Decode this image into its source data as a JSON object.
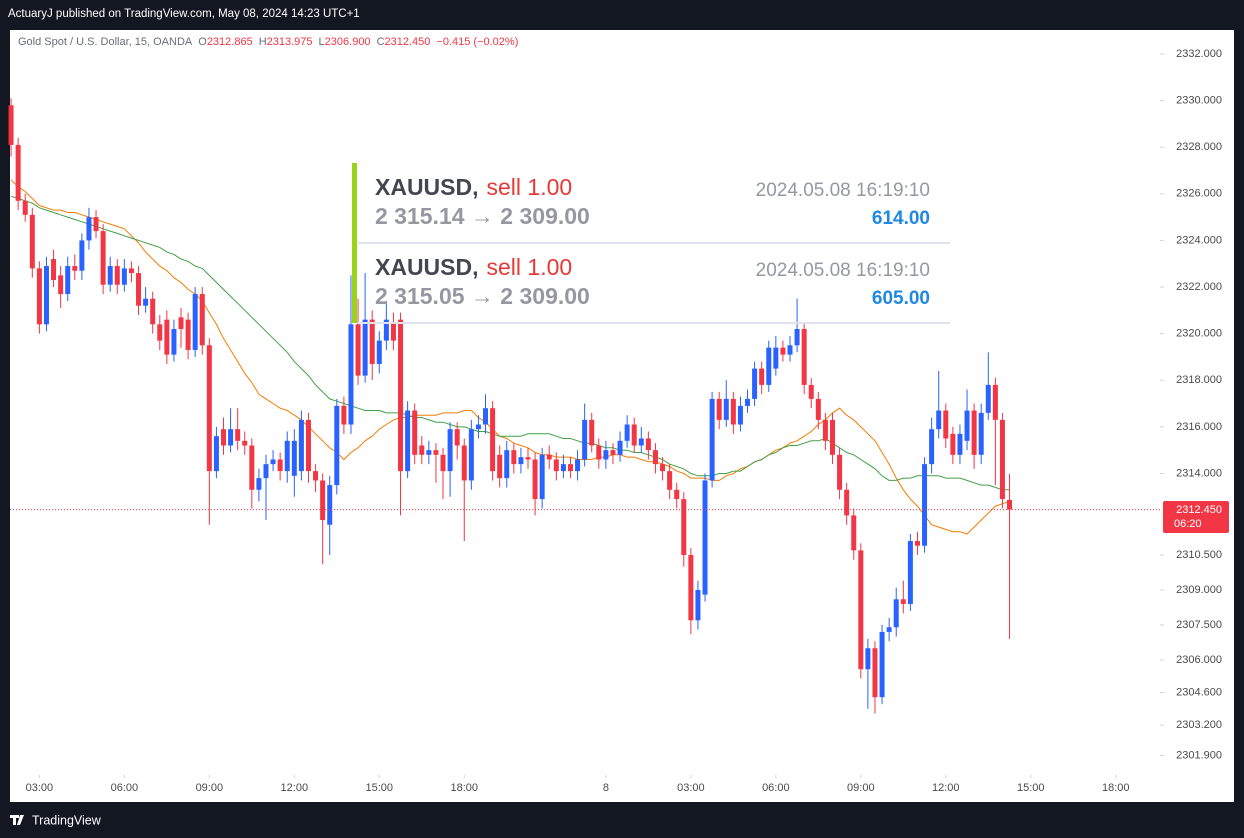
{
  "header": {
    "published": "ActuaryJ published on TradingView.com, May 08, 2024 14:23 UTC+1"
  },
  "legend": {
    "symbol": "Gold Spot / U.S. Dollar, 15, OANDA",
    "o_label": "O",
    "o": "2312.865",
    "h_label": "H",
    "h": "2313.975",
    "l_label": "L",
    "l": "2306.900",
    "c_label": "C",
    "c": "2312.450",
    "change": "−0.415 (−0.02%)"
  },
  "trades": [
    {
      "symbol": "XAUUSD,",
      "side": "sell 1.00",
      "time": "2024.05.08 16:19:10",
      "prices": "2 315.14 → 2 309.00",
      "profit": "614.00"
    },
    {
      "symbol": "XAUUSD,",
      "side": "sell 1.00",
      "time": "2024.05.08 16:19:10",
      "prices": "2 315.05 → 2 309.00",
      "profit": "605.00"
    }
  ],
  "price_label": {
    "price": "2312.450",
    "countdown": "06:20"
  },
  "footer": {
    "brand": "TradingView"
  },
  "chart_data": {
    "type": "candlestick",
    "up_color": "#2962ff",
    "down_color": "#f23645",
    "xlim": [
      -0.15,
      162.25
    ],
    "xticks": [
      {
        "value": 4,
        "label": "03:00"
      },
      {
        "value": 16,
        "label": "06:00"
      },
      {
        "value": 28,
        "label": "09:00"
      },
      {
        "value": 40,
        "label": "12:00"
      },
      {
        "value": 52,
        "label": "15:00"
      },
      {
        "value": 64,
        "label": "18:00"
      },
      {
        "value": 84,
        "label": "8"
      },
      {
        "value": 96,
        "label": "03:00"
      },
      {
        "value": 108,
        "label": "06:00"
      },
      {
        "value": 120,
        "label": "09:00"
      },
      {
        "value": 132,
        "label": "12:00"
      },
      {
        "value": 144,
        "label": "15:00"
      },
      {
        "value": 156,
        "label": "18:00"
      }
    ],
    "ylim": [
      2301.06,
      2333.03
    ],
    "yticks": [
      {
        "value": 2332,
        "label": "2332.000"
      },
      {
        "value": 2330,
        "label": "2330.000"
      },
      {
        "value": 2328,
        "label": "2328.000"
      },
      {
        "value": 2326,
        "label": "2326.000"
      },
      {
        "value": 2324,
        "label": "2324.000"
      },
      {
        "value": 2322,
        "label": "2322.000"
      },
      {
        "value": 2320,
        "label": "2320.000"
      },
      {
        "value": 2318,
        "label": "2318.000"
      },
      {
        "value": 2316,
        "label": "2316.000"
      },
      {
        "value": 2314,
        "label": "2314.000"
      },
      {
        "value": 2310.5,
        "label": "2310.500"
      },
      {
        "value": 2309,
        "label": "2309.000"
      },
      {
        "value": 2307.5,
        "label": "2307.500"
      },
      {
        "value": 2306,
        "label": "2306.000"
      },
      {
        "value": 2304.6,
        "label": "2304.600"
      },
      {
        "value": 2303.2,
        "label": "2303.200"
      },
      {
        "value": 2301.9,
        "label": "2301.900"
      }
    ],
    "open": [
      2329.8,
      2328.1,
      2325.7,
      2325.1,
      2322.8,
      2320.4,
      2323.2,
      2322.5,
      2321.7,
      2322.9,
      2322.7,
      2324.0,
      2325.0,
      2324.4,
      2322.1,
      2322.9,
      2322.1,
      2322.8,
      2322.6,
      2321.2,
      2321.5,
      2320.4,
      2320.6,
      2319.1,
      2320.7,
      2320.6,
      2319.3,
      2321.7,
      2319.5,
      2314.1,
      2315.9,
      2315.2,
      2315.9,
      2315.4,
      2315.2,
      2313.3,
      2313.8,
      2314.4,
      2314.6,
      2314.1,
      2313.9,
      2314.1,
      2316.3,
      2314.1,
      2313.7,
      2311.8,
      2313.5,
      2316.9,
      2316.1,
      2320.4,
      2318.2,
      2320.6,
      2318.7,
      2319.7,
      2320.5,
      2320.6,
      2314.1,
      2316.7,
      2315.2,
      2314.8,
      2315.0,
      2314.8,
      2314.1,
      2315.9,
      2315.2,
      2313.7,
      2315.9,
      2316.1,
      2316.8,
      2314.8,
      2313.8,
      2315.0,
      2314.4,
      2314.7,
      2314.6,
      2312.9,
      2314.8,
      2314.6,
      2314.1,
      2314.4,
      2314.1,
      2314.6,
      2316.3,
      2315.2,
      2314.6,
      2315.0,
      2314.8,
      2315.4,
      2316.1,
      2315.2,
      2315.5,
      2315.0,
      2314.4,
      2314.1,
      2313.3,
      2312.9,
      2310.5,
      2307.7,
      2308.8,
      2313.7,
      2317.2,
      2316.3,
      2317.2,
      2316.1,
      2316.9,
      2317.2,
      2318.5,
      2317.8,
      2318.5,
      2319.4,
      2319.1,
      2319.5,
      2320.2,
      2317.8,
      2317.2,
      2316.3,
      2316.3,
      2314.8,
      2313.3,
      2312.2,
      2310.7,
      2305.6,
      2306.5,
      2304.4,
      2307.2,
      2307.4,
      2308.6,
      2308.4,
      2311.1,
      2310.9,
      2314.4,
      2315.9,
      2316.7,
      2315.7,
      2314.8,
      2315.4,
      2316.7,
      2314.8,
      2316.6,
      2317.8,
      2316.3,
      2312.865
    ],
    "high": [
      2330.1,
      2328.4,
      2326.0,
      2325.4,
      2323.1,
      2323.3,
      2323.6,
      2322.9,
      2323.3,
      2323.4,
      2324.3,
      2325.4,
      2325.3,
      2324.7,
      2323.3,
      2323.2,
      2323.2,
      2323.1,
      2322.9,
      2322.0,
      2321.8,
      2320.8,
      2321.0,
      2320.6,
      2321.1,
      2320.9,
      2322.0,
      2322.0,
      2319.8,
      2316.0,
      2316.4,
      2316.8,
      2316.8,
      2315.8,
      2315.5,
      2314.2,
      2314.8,
      2315.0,
      2314.9,
      2315.8,
      2315.9,
      2316.7,
      2316.6,
      2314.4,
      2314.0,
      2313.9,
      2317.2,
      2317.3,
      2322.5,
      2321.5,
      2322.6,
      2321.0,
      2320.1,
      2321.4,
      2320.9,
      2320.9,
      2317.1,
      2317.0,
      2315.6,
      2315.4,
      2315.3,
      2315.1,
      2316.2,
      2316.2,
      2315.5,
      2316.3,
      2316.5,
      2317.4,
      2317.1,
      2315.2,
      2315.4,
      2315.3,
      2315.1,
      2315.1,
      2314.9,
      2315.1,
      2315.2,
      2314.9,
      2314.8,
      2314.7,
      2315.0,
      2317.0,
      2316.6,
      2315.5,
      2315.4,
      2315.3,
      2315.8,
      2316.5,
      2316.4,
      2316.0,
      2315.8,
      2315.3,
      2314.7,
      2314.4,
      2313.6,
      2313.2,
      2310.8,
      2309.4,
      2314.0,
      2317.5,
      2317.5,
      2318.0,
      2317.5,
      2317.3,
      2317.6,
      2318.8,
      2318.8,
      2319.7,
      2319.9,
      2319.7,
      2319.9,
      2321.5,
      2320.5,
      2318.1,
      2317.5,
      2316.6,
      2316.6,
      2315.1,
      2313.6,
      2312.5,
      2311.0,
      2306.9,
      2306.8,
      2307.5,
      2307.8,
      2309.1,
      2309.4,
      2311.4,
      2311.5,
      2314.7,
      2316.4,
      2318.4,
      2317.0,
      2316.0,
      2316.1,
      2317.6,
      2317.0,
      2317.0,
      2319.2,
      2318.1,
      2316.6,
      2313.975
    ],
    "low": [
      2327.6,
      2325.3,
      2324.8,
      2322.4,
      2320.0,
      2320.1,
      2322.0,
      2321.1,
      2321.4,
      2322.3,
      2322.3,
      2323.6,
      2324.1,
      2321.7,
      2321.8,
      2321.7,
      2321.8,
      2322.2,
      2320.8,
      2320.9,
      2320.0,
      2319.3,
      2318.7,
      2318.8,
      2319.4,
      2318.9,
      2319.0,
      2319.1,
      2311.8,
      2313.8,
      2314.8,
      2314.9,
      2315.0,
      2314.8,
      2312.5,
      2312.8,
      2312.0,
      2314.1,
      2313.7,
      2313.6,
      2313.0,
      2313.7,
      2313.6,
      2313.2,
      2310.1,
      2310.5,
      2313.1,
      2315.7,
      2315.7,
      2317.8,
      2317.9,
      2318.0,
      2318.3,
      2319.3,
      2319.3,
      2312.2,
      2313.8,
      2314.4,
      2314.4,
      2314.4,
      2313.6,
      2312.9,
      2313.0,
      2314.6,
      2311.1,
      2313.3,
      2315.5,
      2315.7,
      2313.7,
      2313.4,
      2313.4,
      2314.0,
      2314.0,
      2314.2,
      2312.2,
      2312.5,
      2314.2,
      2313.7,
      2313.8,
      2313.8,
      2313.7,
      2314.3,
      2314.9,
      2314.2,
      2314.2,
      2314.4,
      2314.5,
      2315.1,
      2314.9,
      2314.9,
      2314.6,
      2314.0,
      2313.7,
      2312.9,
      2312.5,
      2310.0,
      2307.1,
      2307.3,
      2308.5,
      2313.4,
      2315.9,
      2316.0,
      2315.7,
      2315.8,
      2316.6,
      2316.9,
      2317.4,
      2317.5,
      2318.2,
      2318.8,
      2318.8,
      2319.2,
      2317.4,
      2316.8,
      2315.9,
      2315.0,
      2314.4,
      2312.9,
      2311.8,
      2310.3,
      2305.2,
      2303.9,
      2303.7,
      2304.1,
      2306.8,
      2307.0,
      2308.0,
      2308.1,
      2310.5,
      2310.6,
      2314.0,
      2315.5,
      2315.1,
      2314.4,
      2314.4,
      2315.0,
      2314.2,
      2314.4,
      2316.3,
      2313.5,
      2312.5,
      2306.9
    ],
    "close": [
      2328.1,
      2325.7,
      2325.1,
      2322.8,
      2320.4,
      2322.9,
      2322.3,
      2321.7,
      2322.9,
      2322.7,
      2324.0,
      2325.0,
      2324.4,
      2322.1,
      2322.9,
      2322.1,
      2322.8,
      2322.6,
      2321.2,
      2321.5,
      2320.4,
      2319.7,
      2319.1,
      2320.2,
      2320.2,
      2319.3,
      2321.7,
      2319.5,
      2314.1,
      2315.6,
      2315.2,
      2315.9,
      2315.4,
      2315.2,
      2313.3,
      2313.8,
      2314.4,
      2314.6,
      2314.1,
      2315.4,
      2315.4,
      2316.3,
      2314.1,
      2313.7,
      2312.0,
      2313.5,
      2316.9,
      2316.1,
      2320.4,
      2318.2,
      2320.6,
      2318.7,
      2319.7,
      2320.6,
      2319.7,
      2314.1,
      2316.7,
      2314.8,
      2314.8,
      2315.0,
      2314.8,
      2314.1,
      2315.9,
      2315.2,
      2313.7,
      2315.9,
      2316.1,
      2316.8,
      2314.1,
      2313.8,
      2315.0,
      2314.4,
      2314.7,
      2314.6,
      2312.9,
      2314.8,
      2314.6,
      2314.1,
      2314.4,
      2314.1,
      2314.6,
      2316.3,
      2315.2,
      2314.6,
      2315.0,
      2314.8,
      2315.4,
      2316.1,
      2315.2,
      2315.5,
      2315.0,
      2314.4,
      2314.1,
      2313.3,
      2312.9,
      2310.5,
      2307.7,
      2309.0,
      2313.7,
      2317.2,
      2316.3,
      2317.2,
      2316.1,
      2316.9,
      2317.2,
      2318.5,
      2317.8,
      2319.4,
      2319.4,
      2319.1,
      2319.5,
      2320.2,
      2317.8,
      2317.2,
      2316.3,
      2315.4,
      2314.8,
      2313.3,
      2312.2,
      2310.7,
      2305.6,
      2306.5,
      2304.4,
      2307.2,
      2307.4,
      2308.6,
      2308.4,
      2311.1,
      2310.9,
      2314.4,
      2315.9,
      2316.7,
      2315.5,
      2314.8,
      2315.7,
      2316.7,
      2314.8,
      2316.6,
      2317.8,
      2316.3,
      2312.9,
      2312.45
    ],
    "lines": [
      {
        "color": "#f57c00",
        "values": [
          2326.6,
          2326.3,
          2326.1,
          2325.8,
          2325.5,
          2325.4,
          2325.3,
          2325.3,
          2325.2,
          2325.2,
          2325.1,
          2325.0,
          2324.9,
          2324.8,
          2324.7,
          2324.6,
          2324.5,
          2324.2,
          2323.9,
          2323.5,
          2323.2,
          2322.9,
          2322.7,
          2322.4,
          2322.2,
          2321.9,
          2321.7,
          2321.4,
          2320.9,
          2320.4,
          2319.8,
          2319.3,
          2318.8,
          2318.3,
          2317.9,
          2317.4,
          2317.2,
          2317.0,
          2316.8,
          2316.7,
          2316.5,
          2316.3,
          2316.0,
          2315.7,
          2315.4,
          2315.1,
          2314.9,
          2314.6,
          2314.9,
          2315.1,
          2315.4,
          2315.6,
          2315.9,
          2316.1,
          2316.3,
          2316.4,
          2316.4,
          2316.5,
          2316.5,
          2316.5,
          2316.5,
          2316.6,
          2316.6,
          2316.6,
          2316.7,
          2316.7,
          2316.4,
          2316.2,
          2315.9,
          2315.6,
          2315.5,
          2315.3,
          2315.2,
          2315.1,
          2314.9,
          2314.8,
          2314.8,
          2314.7,
          2314.7,
          2314.7,
          2314.6,
          2314.6,
          2314.6,
          2314.7,
          2314.7,
          2314.8,
          2314.8,
          2314.7,
          2314.7,
          2314.6,
          2314.5,
          2314.5,
          2314.4,
          2314.3,
          2314.1,
          2314.0,
          2313.8,
          2313.8,
          2313.8,
          2313.7,
          2313.7,
          2313.9,
          2314.0,
          2314.2,
          2314.3,
          2314.5,
          2314.6,
          2314.8,
          2315.0,
          2315.1,
          2315.3,
          2315.4,
          2315.6,
          2315.8,
          2316.1,
          2316.3,
          2316.6,
          2316.8,
          2316.5,
          2316.3,
          2316.0,
          2315.7,
          2315.4,
          2314.9,
          2314.4,
          2313.8,
          2313.3,
          2312.9,
          2312.6,
          2312.2,
          2311.8,
          2311.7,
          2311.6,
          2311.5,
          2311.5,
          2311.4,
          2311.7,
          2312.0,
          2312.3,
          2312.6,
          2312.7,
          2312.8
        ]
      },
      {
        "color": "#43a047",
        "values": [
          2325.9,
          2325.8,
          2325.7,
          2325.6,
          2325.4,
          2325.3,
          2325.2,
          2325.1,
          2325.0,
          2324.9,
          2324.8,
          2324.7,
          2324.6,
          2324.5,
          2324.4,
          2324.3,
          2324.2,
          2324.1,
          2324.0,
          2323.9,
          2323.8,
          2323.7,
          2323.5,
          2323.4,
          2323.2,
          2323.1,
          2322.9,
          2322.8,
          2322.5,
          2322.2,
          2321.9,
          2321.6,
          2321.3,
          2321.0,
          2320.7,
          2320.4,
          2320.1,
          2319.8,
          2319.5,
          2319.2,
          2318.8,
          2318.5,
          2318.2,
          2317.8,
          2317.5,
          2317.2,
          2317.1,
          2317.0,
          2316.9,
          2316.8,
          2316.7,
          2316.7,
          2316.7,
          2316.6,
          2316.6,
          2316.6,
          2316.5,
          2316.4,
          2316.4,
          2316.3,
          2316.2,
          2316.2,
          2316.1,
          2316.0,
          2316.0,
          2315.9,
          2315.8,
          2315.8,
          2315.7,
          2315.6,
          2315.6,
          2315.6,
          2315.6,
          2315.7,
          2315.7,
          2315.7,
          2315.7,
          2315.6,
          2315.5,
          2315.5,
          2315.4,
          2315.3,
          2315.3,
          2315.2,
          2315.1,
          2315.1,
          2315.0,
          2315.0,
          2314.9,
          2314.9,
          2314.8,
          2314.7,
          2314.6,
          2314.4,
          2314.3,
          2314.2,
          2314.0,
          2313.9,
          2313.9,
          2313.9,
          2314.0,
          2314.0,
          2314.1,
          2314.1,
          2314.3,
          2314.5,
          2314.6,
          2314.8,
          2314.9,
          2315.1,
          2315.2,
          2315.2,
          2315.3,
          2315.4,
          2315.4,
          2315.5,
          2315.3,
          2315.1,
          2314.9,
          2314.8,
          2314.6,
          2314.4,
          2314.2,
          2313.9,
          2313.7,
          2313.7,
          2313.8,
          2313.8,
          2313.9,
          2313.9,
          2313.9,
          2313.9,
          2313.8,
          2313.8,
          2313.8,
          2313.7,
          2313.6,
          2313.5,
          2313.5,
          2313.4,
          2313.3,
          2313.3
        ]
      }
    ]
  }
}
